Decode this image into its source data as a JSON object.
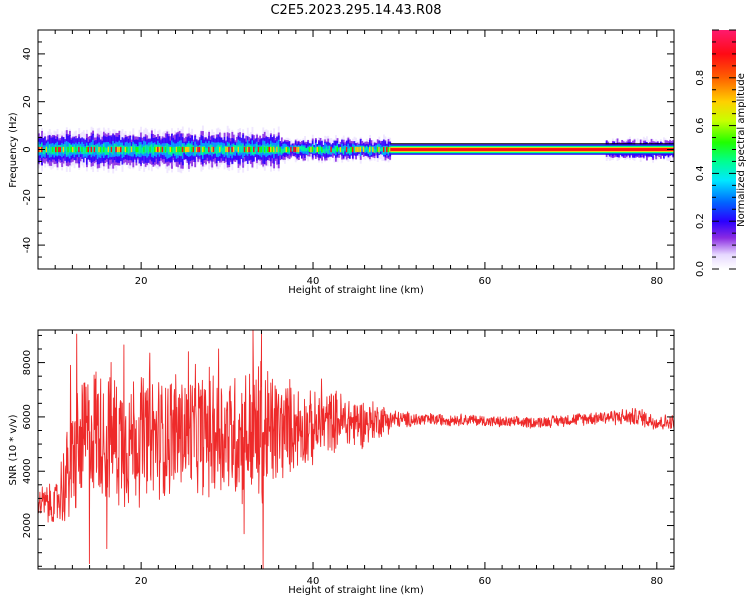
{
  "title": "C2E5.2023.295.14.43.R08",
  "chart_data": [
    {
      "type": "heatmap",
      "xlabel": "Height of straight line (km)",
      "ylabel": "Frequency (Hz)",
      "xlim": [
        8,
        82
      ],
      "ylim": [
        -50,
        50
      ],
      "xticks": [
        20,
        40,
        60,
        80
      ],
      "yticks": [
        -40,
        -20,
        0,
        20,
        40
      ],
      "colorbar": {
        "label": "Normalized spectral amplitude",
        "ticks": [
          0.0,
          0.2,
          0.4,
          0.6,
          0.8
        ],
        "range": [
          0,
          1
        ]
      },
      "band": {
        "center_hz": 0,
        "noisy_region_km": [
          8,
          49
        ],
        "noisy_halfwidth_hz": [
          6,
          1
        ],
        "clean_region_km": [
          49,
          82
        ],
        "clean_halfwidth_hz": 1.2,
        "gaps_km": [
          [
            36.3,
            37.5
          ],
          [
            48,
            74
          ]
        ]
      }
    },
    {
      "type": "line",
      "xlabel": "Height of straight line (km)",
      "ylabel": "SNR (10 * v/v)",
      "xlim": [
        8,
        82
      ],
      "ylim": [
        400,
        9200
      ],
      "xticks": [
        20,
        40,
        60,
        80
      ],
      "yticks": [
        2000,
        4000,
        6000,
        8000
      ],
      "series": [
        {
          "color": "#ee2a2a",
          "x": [
            8,
            10,
            12,
            14,
            16,
            18,
            20,
            22,
            24,
            26,
            28,
            30,
            32,
            34,
            36,
            38,
            40,
            42,
            44,
            46,
            48,
            50,
            54,
            58,
            62,
            66,
            70,
            74,
            76,
            78,
            80,
            82
          ],
          "y": [
            2900,
            2700,
            4300,
            5600,
            5400,
            5100,
            5300,
            5200,
            5500,
            5400,
            5400,
            5400,
            5300,
            5300,
            5500,
            5700,
            5500,
            5900,
            5800,
            5800,
            5900,
            5900,
            5900,
            5900,
            5800,
            5800,
            5900,
            6000,
            6000,
            6000,
            5800,
            5800
          ],
          "amplitude": [
            700,
            900,
            2600,
            2800,
            2900,
            2900,
            2800,
            2700,
            2600,
            2600,
            2700,
            2700,
            2800,
            3400,
            2300,
            1800,
            1500,
            1300,
            1200,
            1000,
            700,
            350,
            260,
            240,
            230,
            240,
            250,
            300,
            340,
            380,
            350,
            320
          ],
          "peaks": [
            [
              12.5,
              9050
            ],
            [
              11.8,
              7900
            ],
            [
              18.0,
              8650
            ],
            [
              21.0,
              8350
            ],
            [
              25.5,
              8400
            ],
            [
              29.0,
              8500
            ],
            [
              33.0,
              9200
            ],
            [
              34.0,
              9150
            ],
            [
              14.0,
              600
            ],
            [
              34.2,
              400
            ],
            [
              16.0,
              1150
            ],
            [
              32.0,
              1700
            ],
            [
              41.0,
              7400
            ]
          ]
        }
      ]
    }
  ]
}
